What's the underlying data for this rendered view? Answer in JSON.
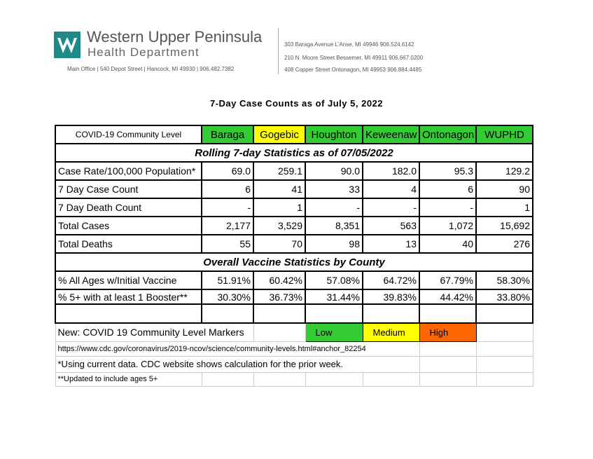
{
  "header": {
    "org_name": "Western Upper Peninsula",
    "org_subname": "Health Department",
    "main_office": "Main Office   |   540 Depot Street   |   Hancock, MI 49930   |   906.482.7382",
    "offices": [
      "303 Baraga Avenue  L'Anse, MI 49946   906.524.6142",
      "210 N. Moore Street  Bessemer, MI 49911   906.667.0200",
      "408 Copper Street   Ontonagon, MI 49953   906.884.4485"
    ]
  },
  "title": "7-Day Case Counts as of July 5, 2022",
  "table": {
    "header": [
      "COVID-19 Community Level",
      "Baraga",
      "Gogebic",
      "Houghton",
      "Keweenaw",
      "Ontonagon",
      "WUPHD"
    ],
    "rolling_heading": "Rolling 7-day Statistics as of 07/05/2022",
    "rolling_rows": [
      {
        "label": "Case Rate/100,000 Population*",
        "values": [
          "69.0",
          "259.1",
          "90.0",
          "182.0",
          "95.3",
          "129.2"
        ]
      },
      {
        "label": "7 Day Case Count",
        "values": [
          "6",
          "41",
          "33",
          "4",
          "6",
          "90"
        ]
      },
      {
        "label": "7 Day Death Count",
        "values": [
          "-",
          "1",
          "-",
          "-",
          "-",
          "1"
        ]
      },
      {
        "label": "Total Cases",
        "values": [
          "2,177",
          "3,529",
          "8,351",
          "563",
          "1,072",
          "15,692"
        ]
      },
      {
        "label": "Total Deaths",
        "values": [
          "55",
          "70",
          "98",
          "13",
          "40",
          "276"
        ]
      }
    ],
    "vaccine_heading": "Overall Vaccine Statistics by County",
    "vaccine_rows": [
      {
        "label": "% All Ages w/Initial Vaccine",
        "values": [
          "51.91%",
          "60.42%",
          "57.08%",
          "64.72%",
          "67.79%",
          "58.30%"
        ]
      },
      {
        "label": "% 5+ with at least 1 Booster**",
        "values": [
          "30.30%",
          "36.73%",
          "31.44%",
          "39.83%",
          "44.42%",
          "33.80%"
        ]
      }
    ],
    "markers": {
      "label": "New: COVID 19 Community Level Markers",
      "levels": [
        "Low",
        "Medium",
        "High"
      ]
    },
    "notes": [
      "https://www.cdc.gov/coronavirus/2019-ncov/science/community-levels.html#anchor_82254",
      "*Using current data. CDC website shows calculation for the prior week.",
      "**Updated to include ages 5+"
    ]
  }
}
